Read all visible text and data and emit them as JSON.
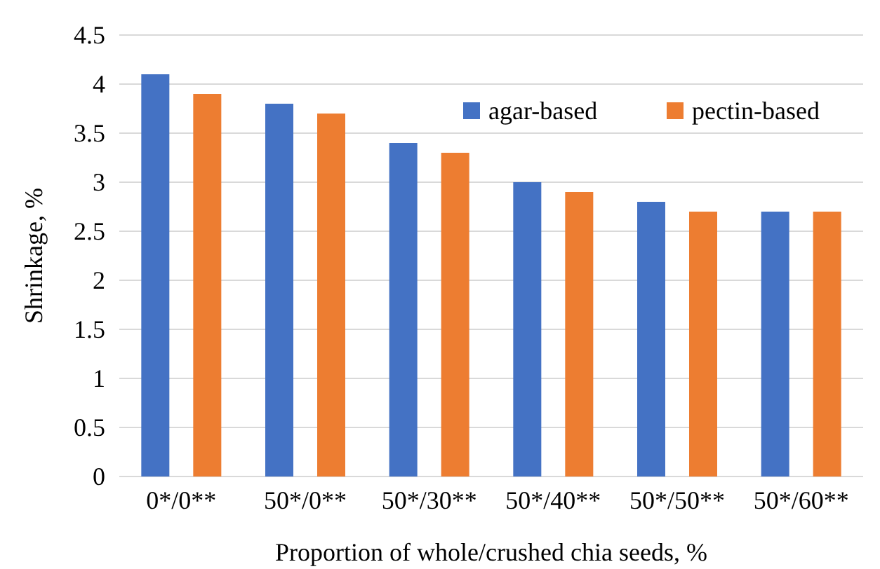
{
  "chart_data": {
    "type": "bar",
    "xlabel": "Proportion of whole/crushed chia seeds, %",
    "ylabel": "Shrinkage, %",
    "categories": [
      "0*/0**",
      "50*/0**",
      "50*/30**",
      "50*/40**",
      "50*/50**",
      "50*/60**"
    ],
    "series": [
      {
        "name": "agar-based",
        "color": "#4472c4",
        "values": [
          4.1,
          3.8,
          3.4,
          3.0,
          2.8,
          2.7
        ]
      },
      {
        "name": "pectin-based",
        "color": "#ed7d31",
        "values": [
          3.9,
          3.7,
          3.3,
          2.9,
          2.7,
          2.7
        ]
      }
    ],
    "ylim": [
      0,
      4.5
    ],
    "yticks": [
      0,
      0.5,
      1,
      1.5,
      2,
      2.5,
      3,
      3.5,
      4,
      4.5
    ],
    "grid": "y",
    "legend": "top right"
  }
}
